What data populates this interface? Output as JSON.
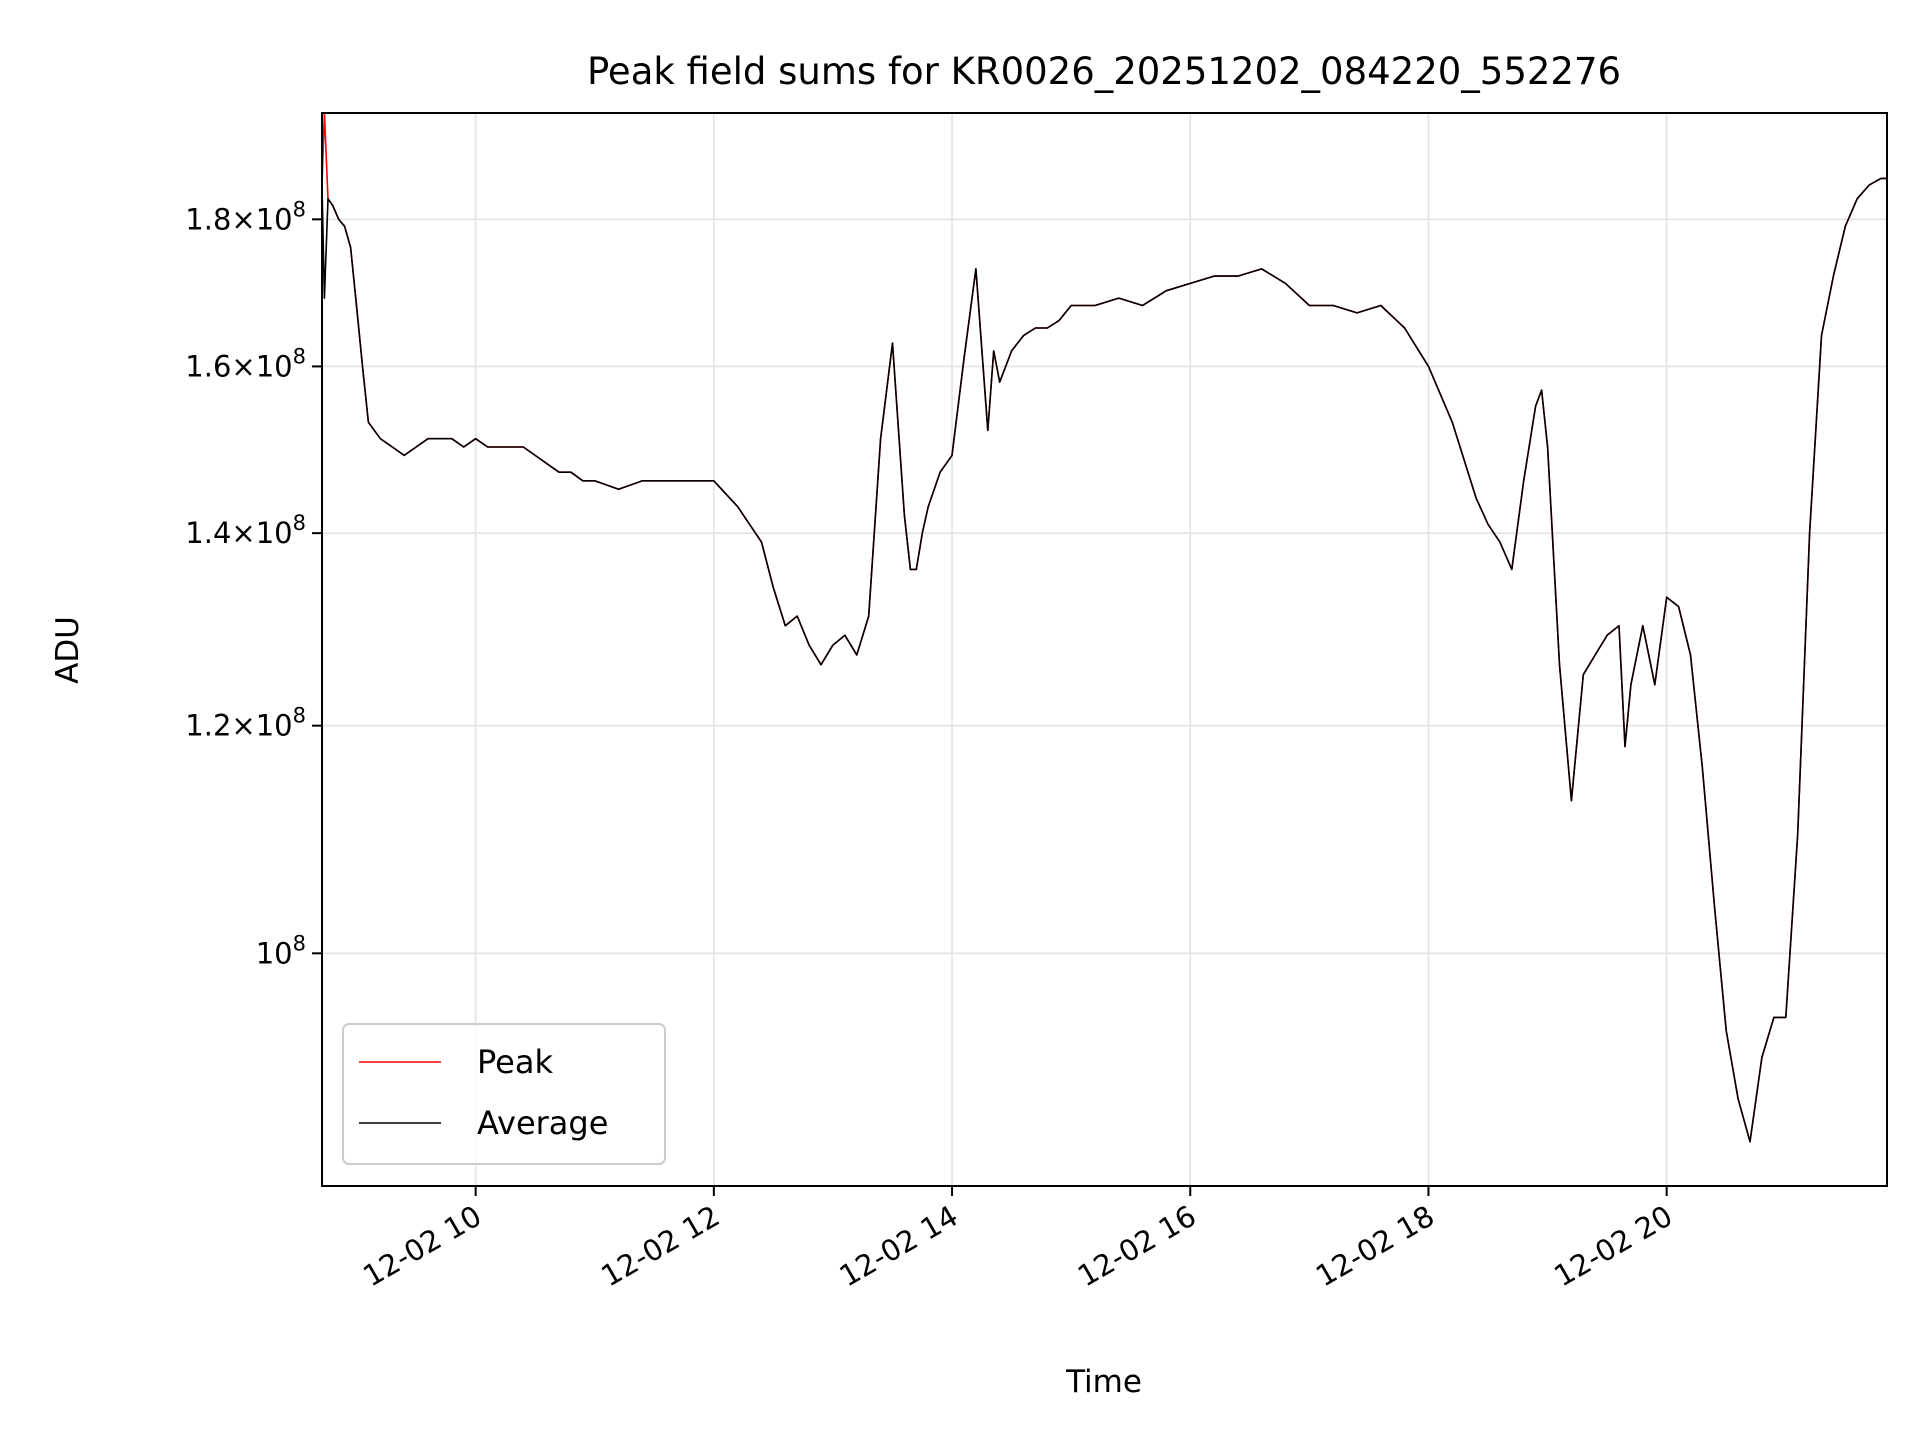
{
  "chart_data": {
    "type": "line",
    "title": "Peak field sums for KR0026_20251202_084220_552276",
    "xlabel": "Time",
    "ylabel": "ADU",
    "yscale": "log",
    "ylim": [
      83000000,
      196000000
    ],
    "xlim_hours": [
      8.71,
      21.85
    ],
    "grid": true,
    "legend_position": "lower-left",
    "x_ticks": [
      {
        "hour": 10,
        "label": "12-02 10"
      },
      {
        "hour": 12,
        "label": "12-02 12"
      },
      {
        "hour": 14,
        "label": "12-02 14"
      },
      {
        "hour": 16,
        "label": "12-02 16"
      },
      {
        "hour": 18,
        "label": "12-02 18"
      },
      {
        "hour": 20,
        "label": "12-02 20"
      }
    ],
    "y_ticks": [
      {
        "value": 100000000,
        "mantissa": "",
        "base": "10",
        "exp": "8"
      },
      {
        "value": 120000000,
        "mantissa": "1.2×",
        "base": "10",
        "exp": "8"
      },
      {
        "value": 140000000,
        "mantissa": "1.4×",
        "base": "10",
        "exp": "8"
      },
      {
        "value": 160000000,
        "mantissa": "1.6×",
        "base": "10",
        "exp": "8"
      },
      {
        "value": 180000000,
        "mantissa": "1.8×",
        "base": "10",
        "exp": "8"
      }
    ],
    "series": [
      {
        "name": "Peak",
        "color": "#ff0000",
        "x_hours": [
          8.71,
          8.73,
          8.76,
          8.8,
          8.85,
          8.9,
          8.95,
          9.0,
          9.05,
          9.1,
          9.15,
          9.2,
          9.3,
          9.4,
          9.5,
          9.6,
          9.7,
          9.8,
          9.9,
          10.0,
          10.1,
          10.2,
          10.3,
          10.4,
          10.5,
          10.6,
          10.7,
          10.8,
          10.9,
          11.0,
          11.2,
          11.4,
          11.6,
          11.8,
          12.0,
          12.2,
          12.4,
          12.5,
          12.6,
          12.7,
          12.8,
          12.9,
          13.0,
          13.1,
          13.2,
          13.3,
          13.4,
          13.5,
          13.6,
          13.65,
          13.7,
          13.75,
          13.8,
          13.9,
          14.0,
          14.1,
          14.2,
          14.3,
          14.35,
          14.4,
          14.5,
          14.6,
          14.7,
          14.8,
          14.9,
          15.0,
          15.2,
          15.4,
          15.6,
          15.8,
          16.0,
          16.2,
          16.4,
          16.6,
          16.8,
          17.0,
          17.2,
          17.4,
          17.6,
          17.8,
          18.0,
          18.2,
          18.4,
          18.5,
          18.6,
          18.7,
          18.8,
          18.9,
          18.95,
          19.0,
          19.1,
          19.2,
          19.3,
          19.4,
          19.5,
          19.6,
          19.65,
          19.7,
          19.8,
          19.9,
          20.0,
          20.1,
          20.2,
          20.3,
          20.4,
          20.5,
          20.6,
          20.7,
          20.8,
          20.9,
          21.0,
          21.1,
          21.2,
          21.3,
          21.4,
          21.5,
          21.6,
          21.7,
          21.8,
          21.85
        ],
        "y_millions": [
          185,
          196,
          183,
          182,
          180,
          179,
          176,
          168,
          160,
          153,
          152,
          151,
          150,
          149,
          150,
          151,
          151,
          151,
          150,
          151,
          150,
          150,
          150,
          150,
          149,
          148,
          147,
          147,
          146,
          146,
          145,
          146,
          146,
          146,
          146,
          143,
          139,
          134,
          130,
          131,
          128,
          126,
          128,
          129,
          127,
          131,
          151,
          163,
          142,
          136,
          136,
          140,
          143,
          147,
          149,
          161,
          173,
          152,
          162,
          158,
          162,
          164,
          165,
          165,
          166,
          168,
          168,
          169,
          168,
          170,
          171,
          172,
          172,
          173,
          171,
          168,
          168,
          167,
          168,
          165,
          160,
          153,
          144,
          141,
          139,
          136,
          146,
          155,
          157,
          150,
          126,
          113,
          125,
          127,
          129,
          130,
          118,
          124,
          130,
          124,
          133,
          132,
          127,
          116,
          104,
          94,
          89,
          86,
          92,
          95,
          95,
          110,
          140,
          164,
          172,
          179,
          183,
          185,
          186,
          186
        ]
      },
      {
        "name": "Average",
        "color": "#000000",
        "x_hours": [
          8.71,
          8.73,
          8.76,
          8.8,
          8.85,
          8.9,
          8.95,
          9.0,
          9.05,
          9.1,
          9.15,
          9.2,
          9.3,
          9.4,
          9.5,
          9.6,
          9.7,
          9.8,
          9.9,
          10.0,
          10.1,
          10.2,
          10.3,
          10.4,
          10.5,
          10.6,
          10.7,
          10.8,
          10.9,
          11.0,
          11.2,
          11.4,
          11.6,
          11.8,
          12.0,
          12.2,
          12.4,
          12.5,
          12.6,
          12.7,
          12.8,
          12.9,
          13.0,
          13.1,
          13.2,
          13.3,
          13.4,
          13.5,
          13.6,
          13.65,
          13.7,
          13.75,
          13.8,
          13.9,
          14.0,
          14.1,
          14.2,
          14.3,
          14.35,
          14.4,
          14.5,
          14.6,
          14.7,
          14.8,
          14.9,
          15.0,
          15.2,
          15.4,
          15.6,
          15.8,
          16.0,
          16.2,
          16.4,
          16.6,
          16.8,
          17.0,
          17.2,
          17.4,
          17.6,
          17.8,
          18.0,
          18.2,
          18.4,
          18.5,
          18.6,
          18.7,
          18.8,
          18.9,
          18.95,
          19.0,
          19.1,
          19.2,
          19.3,
          19.4,
          19.5,
          19.6,
          19.65,
          19.7,
          19.8,
          19.9,
          20.0,
          20.1,
          20.2,
          20.3,
          20.4,
          20.5,
          20.6,
          20.7,
          20.8,
          20.9,
          21.0,
          21.1,
          21.2,
          21.3,
          21.4,
          21.5,
          21.6,
          21.7,
          21.8,
          21.85
        ],
        "y_millions": [
          185,
          169,
          183,
          182,
          180,
          179,
          176,
          168,
          160,
          153,
          152,
          151,
          150,
          149,
          150,
          151,
          151,
          151,
          150,
          151,
          150,
          150,
          150,
          150,
          149,
          148,
          147,
          147,
          146,
          146,
          145,
          146,
          146,
          146,
          146,
          143,
          139,
          134,
          130,
          131,
          128,
          126,
          128,
          129,
          127,
          131,
          151,
          163,
          142,
          136,
          136,
          140,
          143,
          147,
          149,
          161,
          173,
          152,
          162,
          158,
          162,
          164,
          165,
          165,
          166,
          168,
          168,
          169,
          168,
          170,
          171,
          172,
          172,
          173,
          171,
          168,
          168,
          167,
          168,
          165,
          160,
          153,
          144,
          141,
          139,
          136,
          146,
          155,
          157,
          150,
          126,
          113,
          125,
          127,
          129,
          130,
          118,
          124,
          130,
          124,
          133,
          132,
          127,
          116,
          104,
          94,
          89,
          86,
          92,
          95,
          95,
          110,
          140,
          164,
          172,
          179,
          183,
          185,
          186,
          186
        ]
      }
    ]
  }
}
